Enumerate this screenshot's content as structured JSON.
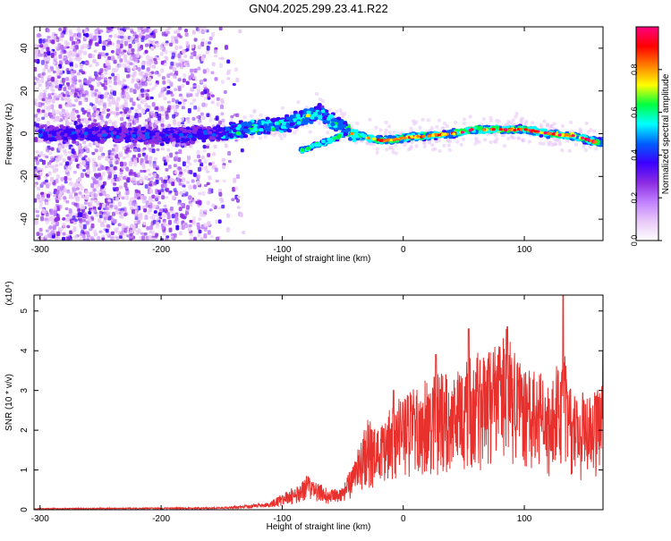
{
  "title": "GN04.2025.299.23.41.R22",
  "chart_data": [
    {
      "type": "heatmap",
      "name": "spectrogram",
      "xlabel": "Height of straight line (km)",
      "ylabel": "Frequency (Hz)",
      "xlim": [
        -305,
        165
      ],
      "ylim": [
        -50,
        50
      ],
      "xticks": [
        -300,
        -200,
        -100,
        0,
        100
      ],
      "yticks": [
        -40,
        -20,
        0,
        20,
        40
      ],
      "colorbar": {
        "label": "Normalized spectral amplitude",
        "range": [
          0,
          1
        ],
        "ticks": [
          0.0,
          0.2,
          0.4,
          0.6,
          0.8
        ],
        "tick_labels": [
          "0.0",
          "0.2",
          "0.4",
          "0.6",
          "0.8"
        ],
        "colors": [
          "#ffffff",
          "#e8c8f8",
          "#c080ff",
          "#8a2be2",
          "#3a00ff",
          "#0060ff",
          "#00ffff",
          "#00ff40",
          "#ffff00",
          "#ff8000",
          "#ff0000",
          "#ff0080"
        ]
      },
      "ridge": {
        "x": [
          -300,
          -250,
          -200,
          -150,
          -120,
          -100,
          -90,
          -80,
          -70,
          -60,
          -50,
          -40,
          -30,
          -20,
          -10,
          0,
          20,
          40,
          60,
          80,
          100,
          120,
          140,
          160
        ],
        "y": [
          0,
          0,
          -1,
          0,
          3,
          4,
          6,
          8,
          10,
          6,
          3,
          0,
          -2,
          -3,
          -3,
          -2,
          -1,
          0,
          2,
          2,
          2,
          0,
          -1,
          -4
        ]
      },
      "branch": {
        "x": [
          -85,
          -75,
          -65,
          -55,
          -45
        ],
        "y": [
          -8,
          -6,
          -4,
          -2,
          2
        ]
      }
    },
    {
      "type": "line",
      "name": "snr",
      "xlabel": "Height of straight line (km)",
      "ylabel": "SNR (10 * v/v)",
      "exponent_label": "(x10⁴)",
      "xlim": [
        -305,
        165
      ],
      "ylim": [
        0,
        5.4
      ],
      "xticks": [
        -300,
        -200,
        -100,
        0,
        100
      ],
      "yticks": [
        0,
        1,
        2,
        3,
        4,
        5
      ],
      "color": "#e8302c",
      "envelope": {
        "x": [
          -305,
          -150,
          -110,
          -90,
          -80,
          -70,
          -60,
          -50,
          -40,
          -30,
          -20,
          -10,
          0,
          20,
          40,
          55,
          70,
          85,
          95,
          110,
          125,
          130,
          140,
          150,
          165
        ],
        "y": [
          0.03,
          0.05,
          0.15,
          0.4,
          0.6,
          0.45,
          0.35,
          0.4,
          0.9,
          1.6,
          1.4,
          1.8,
          2.0,
          2.3,
          2.5,
          2.7,
          2.8,
          3.2,
          2.6,
          2.4,
          2.3,
          3.0,
          2.2,
          2.0,
          2.2
        ]
      },
      "peaks": [
        {
          "x": 54,
          "y": 4.55
        },
        {
          "x": 86,
          "y": 4.6
        },
        {
          "x": 132,
          "y": 5.4
        },
        {
          "x": 165,
          "y": 4.0
        },
        {
          "x": 27,
          "y": 3.9
        },
        {
          "x": -8,
          "y": 3.0
        }
      ]
    }
  ]
}
